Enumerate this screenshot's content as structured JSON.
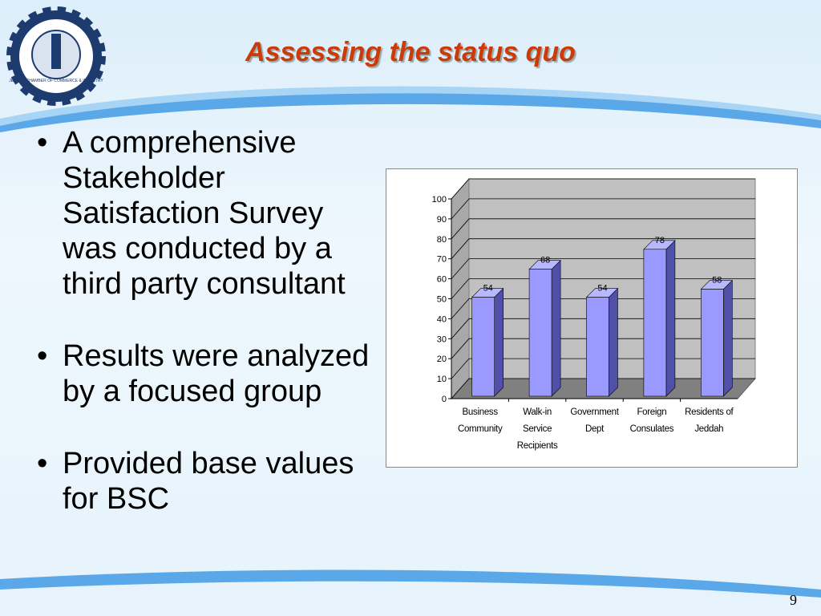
{
  "title": "Assessing the status quo",
  "logo_text": "JEDDAH CHAMBER OF COMMERCE & INDUSTRY",
  "bullets": [
    "A comprehensive Stakeholder Satisfaction Survey was conducted by a third party consultant",
    "Results were analyzed by a focused group",
    "Provided base values for BSC"
  ],
  "page_number": "9",
  "chart_data": {
    "type": "bar",
    "categories": [
      "Business Community",
      "Walk-in Service Recipients",
      "Government Dept",
      "Foreign Consulates",
      "Residents of Jeddah"
    ],
    "values": [
      54,
      68,
      54,
      78,
      58
    ],
    "color": "#9999ff",
    "ylim": [
      0,
      100
    ],
    "yticks": [
      0,
      10,
      20,
      30,
      40,
      50,
      60,
      70,
      80,
      90,
      100
    ],
    "grid": true
  }
}
